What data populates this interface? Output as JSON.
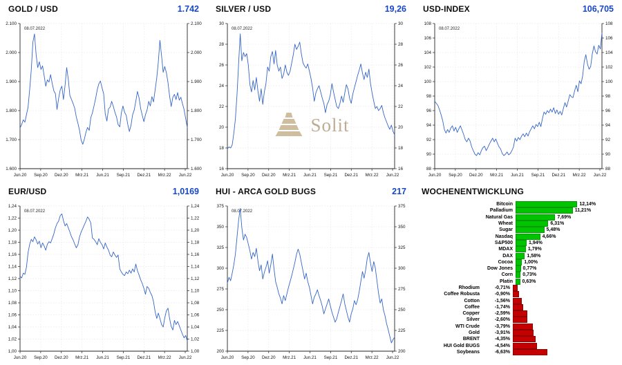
{
  "colors": {
    "line": "#3465c8",
    "value_text": "#1747c8",
    "positive": "#00c400",
    "negative": "#c40000",
    "grid": "#dcdcdc",
    "axis": "#222222",
    "watermark": "#c6b596"
  },
  "watermark": {
    "text": "Solit"
  },
  "chart_data": [
    {
      "id": "gold",
      "type": "line",
      "title": "GOLD / USD",
      "last_value": "1.742",
      "date_annotation": "08.07.2022",
      "y_min": 1600,
      "y_max": 2100,
      "y_labels": [
        "1.600",
        "1.700",
        "1.800",
        "1.900",
        "2.000",
        "2.100"
      ],
      "x_labels": [
        "Jun.20",
        "Sep.20",
        "Dez.20",
        "Mrz.21",
        "Jun.21",
        "Sep.21",
        "Dez.21",
        "Mrz.22",
        "Jun.22"
      ],
      "values": [
        1740,
        1752,
        1768,
        1760,
        1786,
        1812,
        1874,
        1942,
        2036,
        2064,
        1992,
        1948,
        1968,
        1942,
        1954,
        1920,
        1884,
        1906,
        1898,
        1924,
        1894,
        1868,
        1858,
        1804,
        1842,
        1872,
        1884,
        1838,
        1888,
        1948,
        1908,
        1852,
        1838,
        1824,
        1808,
        1778,
        1756,
        1732,
        1698,
        1684,
        1702,
        1726,
        1742,
        1732,
        1776,
        1792,
        1816,
        1842,
        1872,
        1892,
        1902,
        1878,
        1858,
        1788,
        1764,
        1806,
        1812,
        1832,
        1814,
        1794,
        1778,
        1752,
        1744,
        1792,
        1816,
        1794,
        1784,
        1752,
        1728,
        1750,
        1786,
        1802,
        1832,
        1866,
        1844,
        1808,
        1784,
        1762,
        1786,
        1802,
        1832,
        1816,
        1848,
        1830,
        1872,
        1912,
        1968,
        2042,
        1988,
        1932,
        1952,
        1930,
        1896,
        1850,
        1814,
        1846,
        1856,
        1838,
        1862,
        1836,
        1846,
        1824,
        1804,
        1772,
        1742
      ]
    },
    {
      "id": "silver",
      "type": "line",
      "title": "SILVER / USD",
      "last_value": "19,26",
      "date_annotation": "08.07.2022",
      "y_min": 16,
      "y_max": 30,
      "y_labels": [
        "16",
        "18",
        "20",
        "22",
        "24",
        "26",
        "28",
        "30"
      ],
      "x_labels": [
        "Jun.20",
        "Sep.20",
        "Dez.20",
        "Mrz.21",
        "Jun.21",
        "Sep.21",
        "Dez.21",
        "Mrz.22",
        "Jun.22"
      ],
      "values": [
        17.9,
        18.1,
        18.0,
        18.3,
        19.4,
        20.8,
        23.2,
        26.2,
        29.0,
        26.4,
        27.2,
        26.8,
        27.1,
        26.0,
        24.1,
        23.4,
        24.5,
        23.6,
        24.8,
        23.5,
        22.5,
        23.7,
        22.2,
        23.4,
        24.2,
        25.8,
        25.4,
        26.8,
        27.3,
        26.1,
        27.4,
        26.0,
        25.4,
        25.8,
        24.7,
        25.1,
        26.0,
        25.3,
        25.0,
        25.4,
        26.2,
        27.0,
        28.0,
        27.5,
        27.8,
        28.2,
        27.1,
        26.2,
        25.9,
        25.7,
        26.1,
        25.4,
        24.7,
        23.8,
        22.5,
        23.3,
        23.7,
        24.0,
        23.4,
        22.8,
        22.3,
        21.4,
        22.2,
        22.5,
        23.1,
        24.2,
        23.4,
        22.7,
        22.0,
        21.8,
        22.3,
        23.0,
        22.4,
        23.3,
        24.1,
        23.7,
        22.8,
        22.3,
        23.2,
        23.8,
        24.4,
        25.0,
        25.5,
        26.1,
        25.2,
        24.6,
        25.3,
        24.8,
        25.6,
        24.2,
        23.3,
        22.5,
        21.8,
        22.0,
        21.6,
        21.8,
        22.1,
        21.4,
        20.9,
        20.5,
        20.1,
        19.8,
        20.2,
        19.6,
        19.26
      ]
    },
    {
      "id": "usd_index",
      "type": "line",
      "title": "USD-INDEX",
      "last_value": "106,705",
      "date_annotation": "08.07.2022",
      "y_min": 88,
      "y_max": 108,
      "y_labels": [
        "88",
        "90",
        "92",
        "94",
        "96",
        "98",
        "100",
        "102",
        "104",
        "106",
        "108"
      ],
      "x_labels": [
        "Jun.20",
        "Sep.20",
        "Dez.20",
        "Mrz.21",
        "Jun.21",
        "Sep.21",
        "Dez.21",
        "Mrz.22",
        "Jun.22"
      ],
      "values": [
        97.3,
        97.0,
        96.7,
        96.1,
        95.4,
        94.6,
        93.4,
        92.9,
        93.4,
        93.0,
        93.6,
        93.9,
        93.2,
        93.7,
        93.0,
        93.5,
        93.9,
        93.3,
        92.7,
        92.0,
        91.7,
        92.2,
        91.8,
        91.0,
        90.5,
        90.0,
        89.8,
        90.2,
        89.9,
        90.5,
        90.9,
        91.1,
        90.5,
        90.9,
        91.4,
        91.8,
        92.2,
        91.7,
        92.1,
        91.5,
        91.0,
        90.7,
        90.1,
        89.8,
        90.0,
        90.3,
        89.9,
        90.1,
        90.5,
        91.0,
        92.2,
        91.8,
        92.3,
        92.0,
        92.5,
        92.8,
        92.4,
        92.9,
        92.5,
        93.1,
        93.5,
        93.9,
        93.5,
        94.1,
        93.8,
        94.4,
        93.8,
        94.9,
        95.8,
        95.5,
        96.0,
        95.7,
        96.2,
        95.8,
        96.4,
        95.6,
        96.1,
        95.5,
        95.9,
        95.4,
        96.3,
        97.1,
        96.5,
        97.3,
        98.2,
        97.9,
        97.8,
        98.7,
        99.5,
        98.6,
        100.1,
        99.7,
        100.8,
        102.8,
        103.7,
        102.4,
        101.7,
        102.1,
        103.8,
        104.9,
        104.1,
        103.8,
        105.0,
        104.5,
        106.7
      ]
    },
    {
      "id": "eur_usd",
      "type": "line",
      "title": "EUR/USD",
      "last_value": "1,0169",
      "date_annotation": "08.07.2022",
      "y_min": 1.0,
      "y_max": 1.24,
      "y_labels": [
        "1,00",
        "1,02",
        "1,04",
        "1,06",
        "1,08",
        "1,10",
        "1,12",
        "1,14",
        "1,16",
        "1,18",
        "1,20",
        "1,22",
        "1,24"
      ],
      "x_labels": [
        "Jun.20",
        "Sep.20",
        "Dez.20",
        "Mrz.21",
        "Jun.21",
        "Sep.21",
        "Dez.21",
        "Mrz.22",
        "Jun.22"
      ],
      "values": [
        1.124,
        1.121,
        1.129,
        1.127,
        1.139,
        1.163,
        1.177,
        1.185,
        1.181,
        1.189,
        1.184,
        1.177,
        1.182,
        1.171,
        1.179,
        1.174,
        1.167,
        1.177,
        1.181,
        1.179,
        1.186,
        1.194,
        1.204,
        1.211,
        1.215,
        1.224,
        1.227,
        1.216,
        1.207,
        1.211,
        1.204,
        1.197,
        1.189,
        1.184,
        1.177,
        1.171,
        1.176,
        1.189,
        1.197,
        1.203,
        1.209,
        1.215,
        1.222,
        1.218,
        1.212,
        1.187,
        1.185,
        1.181,
        1.176,
        1.186,
        1.18,
        1.176,
        1.169,
        1.179,
        1.172,
        1.167,
        1.159,
        1.156,
        1.164,
        1.159,
        1.155,
        1.159,
        1.136,
        1.131,
        1.127,
        1.125,
        1.131,
        1.128,
        1.134,
        1.129,
        1.136,
        1.131,
        1.144,
        1.133,
        1.126,
        1.118,
        1.112,
        1.104,
        1.094,
        1.107,
        1.104,
        1.097,
        1.092,
        1.082,
        1.065,
        1.054,
        1.063,
        1.054,
        1.044,
        1.04,
        1.055,
        1.067,
        1.071,
        1.054,
        1.041,
        1.035,
        1.051,
        1.044,
        1.049,
        1.042,
        1.035,
        1.028,
        1.022,
        1.026,
        1.0169
      ]
    },
    {
      "id": "hui",
      "type": "line",
      "title": "HUI - ARCA GOLD BUGS",
      "last_value": "217",
      "date_annotation": "08.07.2022",
      "y_min": 200,
      "y_max": 375,
      "y_labels": [
        "200",
        "225",
        "250",
        "275",
        "300",
        "325",
        "350",
        "375"
      ],
      "x_labels": [
        "Jun.20",
        "Sep.20",
        "Dez.20",
        "Mrz.21",
        "Jun.21",
        "Sep.21",
        "Dez.21",
        "Mrz.22",
        "Jun.22"
      ],
      "values": [
        282,
        289,
        285,
        294,
        304,
        317,
        338,
        358,
        372,
        349,
        334,
        341,
        337,
        329,
        321,
        311,
        319,
        314,
        324,
        309,
        297,
        304,
        287,
        295,
        301,
        309,
        294,
        304,
        317,
        299,
        284,
        277,
        269,
        264,
        257,
        267,
        261,
        269,
        277,
        284,
        291,
        299,
        307,
        317,
        323,
        317,
        307,
        297,
        287,
        294,
        284,
        277,
        267,
        257,
        265,
        269,
        274,
        267,
        261,
        254,
        245,
        251,
        257,
        263,
        255,
        247,
        241,
        235,
        239,
        247,
        254,
        261,
        269,
        257,
        249,
        241,
        235,
        245,
        251,
        261,
        256,
        262,
        272,
        284,
        296,
        288,
        298,
        312,
        319,
        306,
        296,
        308,
        300,
        285,
        270,
        258,
        263,
        250,
        243,
        233,
        226,
        218,
        210,
        214,
        217
      ]
    },
    {
      "id": "wochenentwicklung",
      "type": "bar",
      "title": "WOCHENENTWICKLUNG",
      "unit": "%",
      "items": [
        {
          "label": "Bitcoin",
          "display": "12,14%",
          "value": 12.14
        },
        {
          "label": "Palladium",
          "display": "11,21%",
          "value": 11.21
        },
        {
          "label": "Natural Gas",
          "display": "7,69%",
          "value": 7.69
        },
        {
          "label": "Wheat",
          "display": "6,31%",
          "value": 6.31
        },
        {
          "label": "Sugar",
          "display": "5,48%",
          "value": 5.48
        },
        {
          "label": "Nasdaq",
          "display": "4,66%",
          "value": 4.66
        },
        {
          "label": "S&P500",
          "display": "1,94%",
          "value": 1.94
        },
        {
          "label": "MDAX",
          "display": "1,79%",
          "value": 1.79
        },
        {
          "label": "DAX",
          "display": "1,58%",
          "value": 1.58
        },
        {
          "label": "Cocoa",
          "display": "1,00%",
          "value": 1.0
        },
        {
          "label": "Dow Jones",
          "display": "0,77%",
          "value": 0.77
        },
        {
          "label": "Corn",
          "display": "0,73%",
          "value": 0.73
        },
        {
          "label": "Platin",
          "display": "0,63%",
          "value": 0.63
        },
        {
          "label": "Rhodium",
          "display": "-0,71%",
          "value": -0.71
        },
        {
          "label": "Coffee Robusta",
          "display": "-0,90%",
          "value": -0.9
        },
        {
          "label": "Cotton",
          "display": "-1,56%",
          "value": -1.56
        },
        {
          "label": "Coffee",
          "display": "-1,74%",
          "value": -1.74
        },
        {
          "label": "Copper",
          "display": "-2,59%",
          "value": -2.59
        },
        {
          "label": "Silver",
          "display": "-2,60%",
          "value": -2.6
        },
        {
          "label": "WTI Crude",
          "display": "-3,79%",
          "value": -3.79
        },
        {
          "label": "Gold",
          "display": "-3,91%",
          "value": -3.91
        },
        {
          "label": "BRENT",
          "display": "-4,35%",
          "value": -4.35
        },
        {
          "label": "HUI Gold BUGS",
          "display": "-4,54%",
          "value": -4.54
        },
        {
          "label": "Soybeans",
          "display": "-6,63%",
          "value": -6.63
        }
      ]
    }
  ]
}
